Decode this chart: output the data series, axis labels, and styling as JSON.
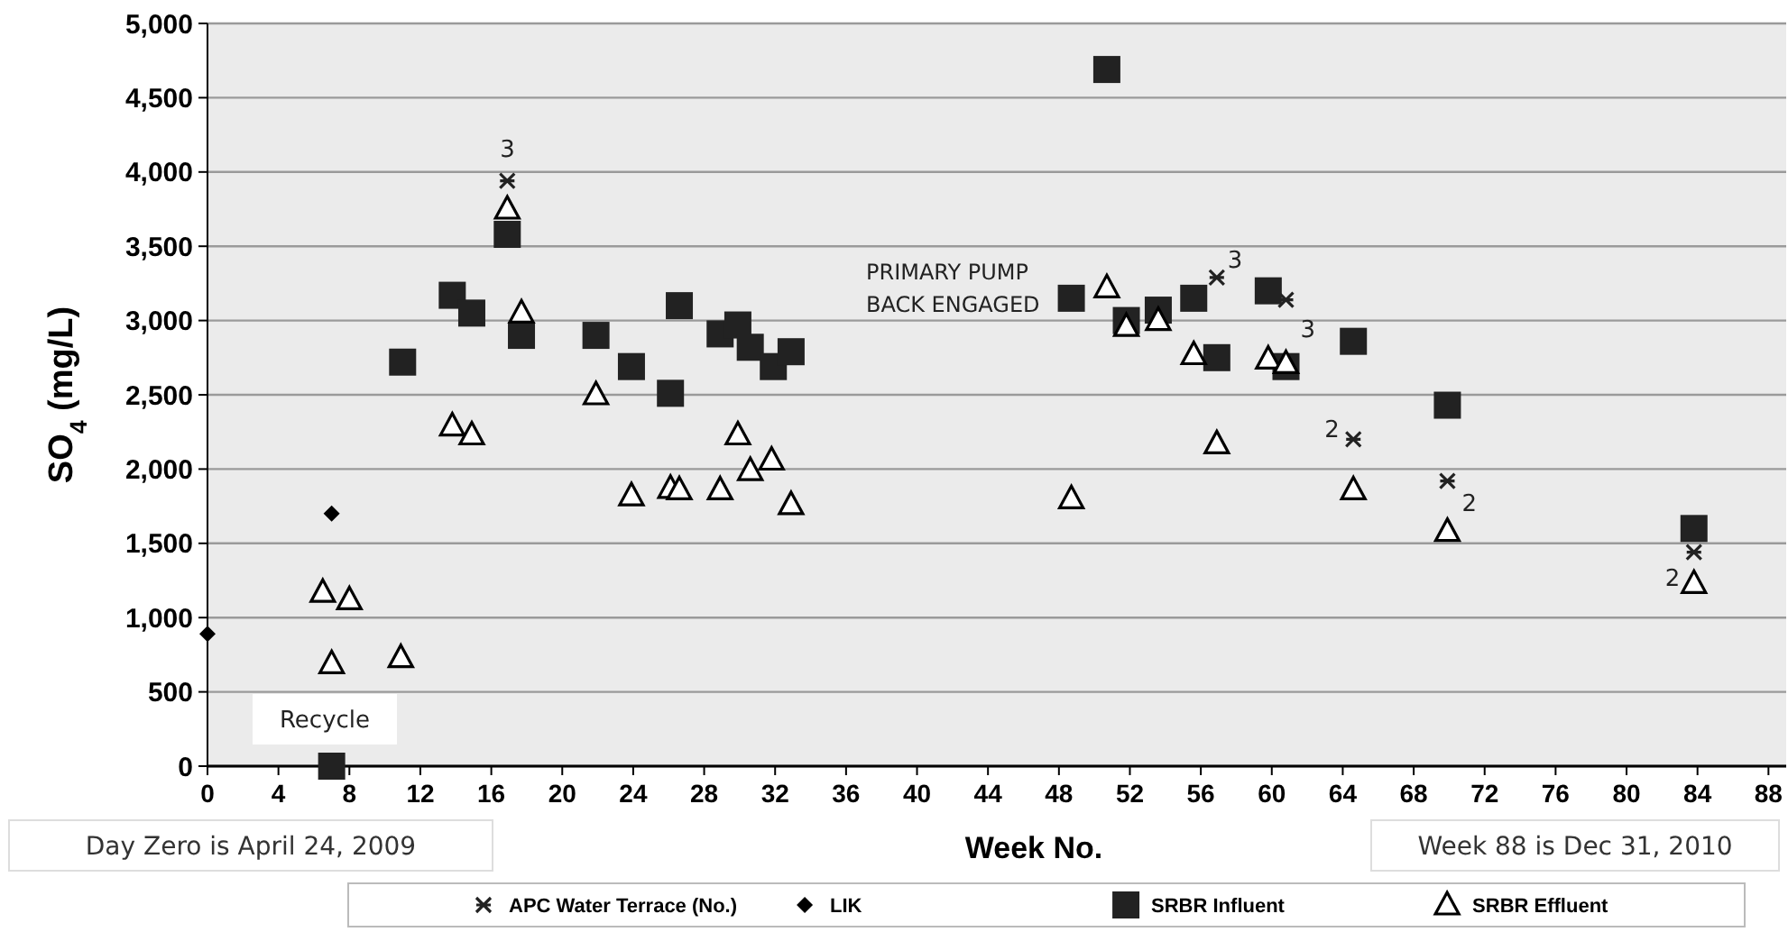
{
  "chart_data": {
    "type": "scatter",
    "xlabel": "Week No.",
    "ylabel": "SO$_{4}$ (mg/L)",
    "xlim": [
      0,
      89
    ],
    "xticks": [
      0,
      4,
      8,
      12,
      16,
      20,
      24,
      28,
      32,
      36,
      40,
      44,
      48,
      52,
      56,
      60,
      64,
      68,
      72,
      76,
      80,
      84,
      88
    ],
    "ylim": [
      0,
      5000
    ],
    "yticks": [
      {
        "value": 0,
        "label": "0"
      },
      {
        "value": 500,
        "label": "500"
      },
      {
        "value": 1000,
        "label": "1,000"
      },
      {
        "value": 1500,
        "label": "1,500"
      },
      {
        "value": 2000,
        "label": "2,000"
      },
      {
        "value": 2500,
        "label": "2,500"
      },
      {
        "value": 3000,
        "label": "3,000"
      },
      {
        "value": 3500,
        "label": "3,500"
      },
      {
        "value": 4000,
        "label": "4,000"
      },
      {
        "value": 4500,
        "label": "4,500"
      },
      {
        "value": 5000,
        "label": "5,000"
      }
    ],
    "grid": "y",
    "legend": "bottom",
    "series": [
      {
        "name": "APC Water Terrace (No.)",
        "color": "#222222",
        "marker": "cross",
        "x": [
          16.9,
          56.9,
          60.8,
          64.6,
          69.9,
          83.8
        ],
        "values": [
          3940,
          3290,
          3140,
          2200,
          1920,
          1440
        ]
      },
      {
        "name": "LIK",
        "color": "#000000",
        "marker": "diamond",
        "x": [
          0,
          7
        ],
        "values": [
          890,
          1700
        ]
      },
      {
        "name": "SRBR Influent",
        "color": "#222222",
        "marker": "square",
        "x": [
          7,
          11,
          13.8,
          14.9,
          16.9,
          17.7,
          21.9,
          23.9,
          26.1,
          26.6,
          28.9,
          29.9,
          30.6,
          31.9,
          32.9,
          48.7,
          50.7,
          51.8,
          53.6,
          55.6,
          56.9,
          59.8,
          60.8,
          64.6,
          69.9,
          83.8
        ],
        "values": [
          0,
          2720,
          3170,
          3050,
          3580,
          2900,
          2900,
          2690,
          2510,
          3100,
          2910,
          2970,
          2820,
          2690,
          2790,
          3150,
          4690,
          3000,
          3070,
          3150,
          2750,
          3200,
          2690,
          2860,
          2430,
          1600
        ]
      },
      {
        "name": "SRBR Effluent",
        "color": "#000000",
        "marker": "triangle",
        "x": [
          6.5,
          8,
          7,
          10.9,
          13.8,
          14.9,
          16.9,
          17.7,
          21.9,
          23.9,
          26.1,
          26.6,
          28.9,
          29.9,
          30.6,
          31.8,
          32.9,
          48.7,
          50.7,
          51.8,
          53.6,
          55.6,
          56.9,
          59.8,
          60.8,
          64.6,
          69.9,
          83.8
        ],
        "values": [
          1170,
          1120,
          690,
          730,
          2290,
          2230,
          3750,
          3050,
          2500,
          1820,
          1870,
          1860,
          1860,
          2230,
          1990,
          2060,
          1760,
          1800,
          3220,
          2960,
          3000,
          2770,
          2170,
          2740,
          2710,
          1860,
          1580,
          1230
        ]
      }
    ],
    "annotations": [
      "Recycle",
      "PRIMARY PUMP BACK ENGAGED",
      "Day Zero is April 24, 2009",
      "Week  88 is Dec 31, 2010",
      {
        "text": "3",
        "x": 16.9,
        "y": 3940
      },
      {
        "text": "3",
        "x": 56.9,
        "y": 3290
      },
      {
        "text": "3",
        "x": 60.8,
        "y": 3140
      },
      {
        "text": "2",
        "x": 64.6,
        "y": 2200
      },
      {
        "text": "2",
        "x": 69.9,
        "y": 1920
      },
      {
        "text": "2",
        "x": 83.8,
        "y": 1440
      }
    ]
  }
}
